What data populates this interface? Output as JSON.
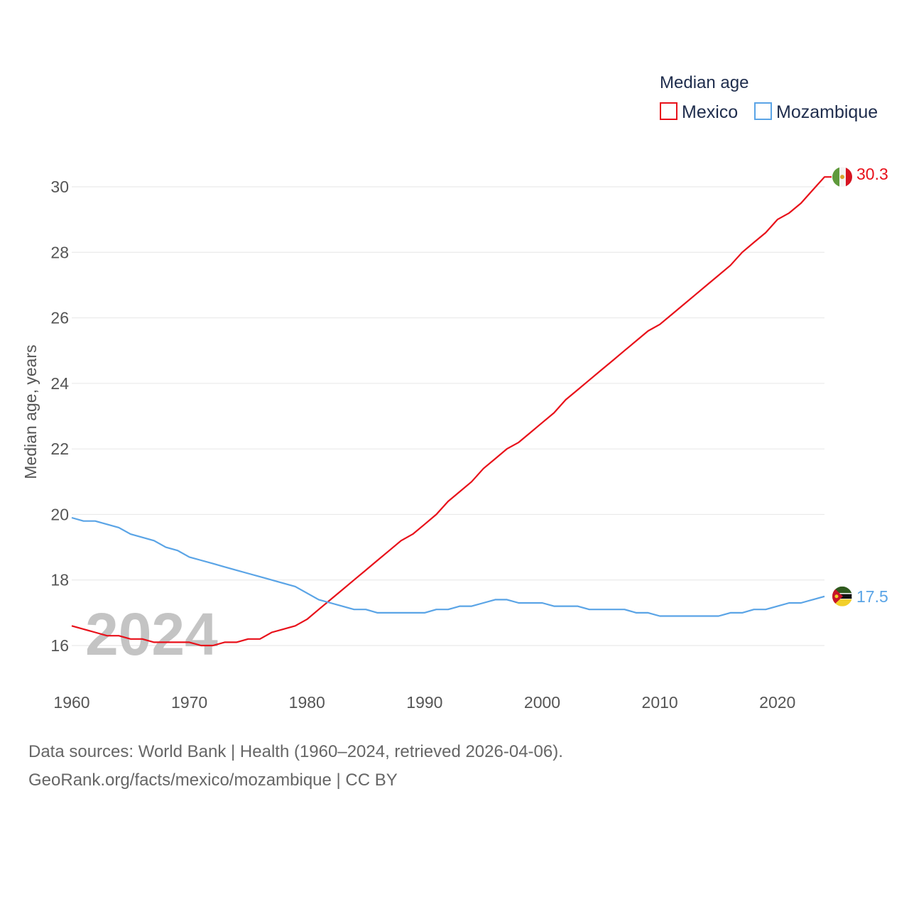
{
  "colors": {
    "mexico": "#e8101a",
    "mozambique": "#5aa4e6",
    "grid": "#e6e6e6",
    "text": "#555555"
  },
  "chart_data": {
    "type": "line",
    "title": "Median age",
    "ylabel": "Median age, years",
    "xlabel": "",
    "xlim": [
      1960,
      2024
    ],
    "ylim": [
      15,
      31
    ],
    "yticks": [
      16,
      18,
      20,
      22,
      24,
      26,
      28,
      30
    ],
    "xticks": [
      1960,
      1970,
      1980,
      1990,
      2000,
      2010,
      2020
    ],
    "grid": true,
    "legend_position": "top-right",
    "year_label": "2024",
    "x": [
      1960,
      1961,
      1962,
      1963,
      1964,
      1965,
      1966,
      1967,
      1968,
      1969,
      1970,
      1971,
      1972,
      1973,
      1974,
      1975,
      1976,
      1977,
      1978,
      1979,
      1980,
      1981,
      1982,
      1983,
      1984,
      1985,
      1986,
      1987,
      1988,
      1989,
      1990,
      1991,
      1992,
      1993,
      1994,
      1995,
      1996,
      1997,
      1998,
      1999,
      2000,
      2001,
      2002,
      2003,
      2004,
      2005,
      2006,
      2007,
      2008,
      2009,
      2010,
      2011,
      2012,
      2013,
      2014,
      2015,
      2016,
      2017,
      2018,
      2019,
      2020,
      2021,
      2022,
      2023,
      2024
    ],
    "series": [
      {
        "name": "Mexico",
        "color": "#e8101a",
        "end_label": "30.3",
        "values": [
          16.6,
          16.5,
          16.4,
          16.3,
          16.3,
          16.2,
          16.2,
          16.1,
          16.1,
          16.1,
          16.1,
          16.0,
          16.0,
          16.1,
          16.1,
          16.2,
          16.2,
          16.4,
          16.5,
          16.6,
          16.8,
          17.1,
          17.4,
          17.7,
          18.0,
          18.3,
          18.6,
          18.9,
          19.2,
          19.4,
          19.7,
          20.0,
          20.4,
          20.7,
          21.0,
          21.4,
          21.7,
          22.0,
          22.2,
          22.5,
          22.8,
          23.1,
          23.5,
          23.8,
          24.1,
          24.4,
          24.7,
          25.0,
          25.3,
          25.6,
          25.8,
          26.1,
          26.4,
          26.7,
          27.0,
          27.3,
          27.6,
          28.0,
          28.3,
          28.6,
          29.0,
          29.2,
          29.5,
          29.9,
          30.3
        ]
      },
      {
        "name": "Mozambique",
        "color": "#5aa4e6",
        "end_label": "17.5",
        "values": [
          19.9,
          19.8,
          19.8,
          19.7,
          19.6,
          19.4,
          19.3,
          19.2,
          19.0,
          18.9,
          18.7,
          18.6,
          18.5,
          18.4,
          18.3,
          18.2,
          18.1,
          18.0,
          17.9,
          17.8,
          17.6,
          17.4,
          17.3,
          17.2,
          17.1,
          17.1,
          17.0,
          17.0,
          17.0,
          17.0,
          17.0,
          17.1,
          17.1,
          17.2,
          17.2,
          17.3,
          17.4,
          17.4,
          17.3,
          17.3,
          17.3,
          17.2,
          17.2,
          17.2,
          17.1,
          17.1,
          17.1,
          17.1,
          17.0,
          17.0,
          16.9,
          16.9,
          16.9,
          16.9,
          16.9,
          16.9,
          17.0,
          17.0,
          17.1,
          17.1,
          17.2,
          17.3,
          17.3,
          17.4,
          17.5
        ]
      }
    ]
  },
  "source": {
    "line1": "Data sources: World Bank | Health (1960–2024, retrieved 2026-04-06).",
    "line2": "GeoRank.org/facts/mexico/mozambique | CC BY"
  }
}
